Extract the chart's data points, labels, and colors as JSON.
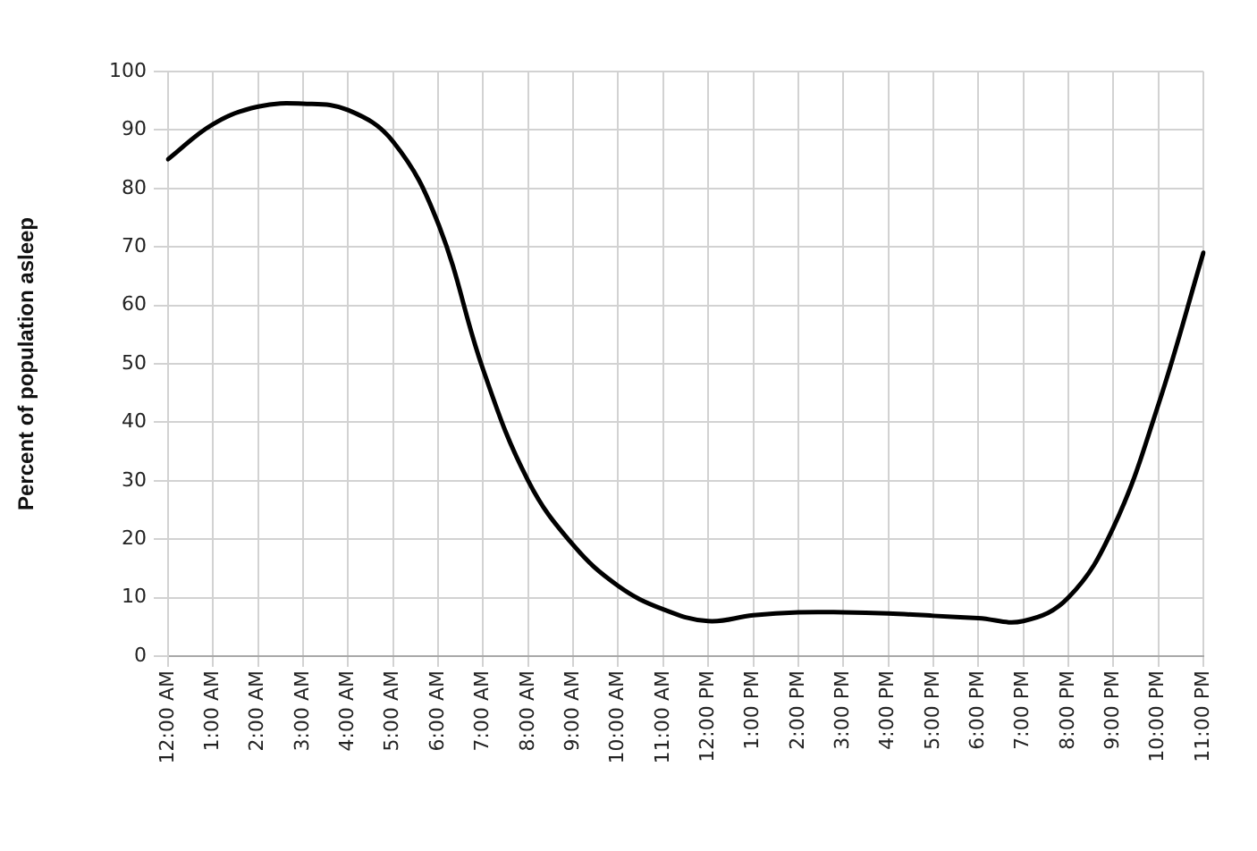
{
  "chart_data": {
    "type": "line",
    "ylabel": "Percent of population asleep",
    "categories": [
      "12:00 AM",
      "1:00 AM",
      "2:00 AM",
      "3:00 AM",
      "4:00 AM",
      "5:00 AM",
      "6:00 AM",
      "7:00 AM",
      "8:00 AM",
      "9:00 AM",
      "10:00 AM",
      "11:00 AM",
      "12:00 PM",
      "1:00 PM",
      "2:00 PM",
      "3:00 PM",
      "4:00 PM",
      "5:00 PM",
      "6:00 PM",
      "7:00 PM",
      "8:00 PM",
      "9:00 PM",
      "10:00 PM",
      "11:00 PM"
    ],
    "series": [
      {
        "color": "#000000",
        "values": [
          85,
          91,
          94,
          94.5,
          93.4,
          88,
          74,
          49,
          30,
          19,
          12,
          8,
          6,
          7,
          7.5,
          7.5,
          7.3,
          6.9,
          6.5,
          6,
          10,
          22,
          43,
          69
        ]
      }
    ],
    "ylim": [
      0,
      100
    ],
    "yticks": [
      0,
      10,
      20,
      30,
      40,
      50,
      60,
      70,
      80,
      90,
      100
    ],
    "grid": true,
    "legend": false,
    "marker": "none",
    "line_style": "solid"
  }
}
